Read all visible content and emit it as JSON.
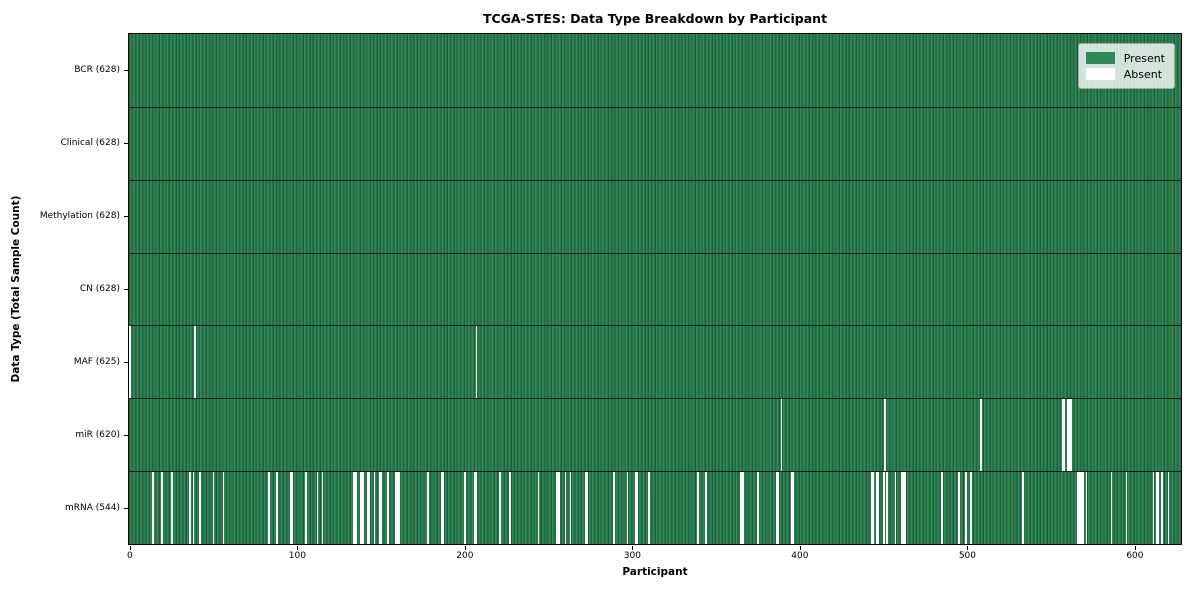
{
  "chart_data": {
    "type": "heatmap",
    "title": "TCGA-STES: Data Type Breakdown by Participant",
    "xlabel": "Participant",
    "ylabel": "Data Type (Total Sample Count)",
    "legend_labels": [
      "Present",
      "Absent"
    ],
    "legend_position": "upper right",
    "n_participants": 628,
    "xlim": [
      -0.5,
      627.5
    ],
    "x_ticks": [
      0,
      100,
      200,
      300,
      400,
      500,
      600
    ],
    "grid": false,
    "colors": {
      "present": "#2e8b57",
      "present_edge": "#1d5c39",
      "absent": "#ffffff",
      "row_separator": "#0e1a12",
      "plot_border": "#000000"
    },
    "rows": [
      {
        "label": "BCR (628)",
        "data_type": "BCR",
        "total_samples": 628,
        "absent_participants": []
      },
      {
        "label": "Clinical (628)",
        "data_type": "Clinical",
        "total_samples": 628,
        "absent_participants": []
      },
      {
        "label": "Methylation (628)",
        "data_type": "Methylation",
        "total_samples": 628,
        "absent_participants": []
      },
      {
        "label": "CN (628)",
        "data_type": "CN",
        "total_samples": 628,
        "absent_participants": []
      },
      {
        "label": "MAF (625)",
        "data_type": "MAF",
        "total_samples": 625,
        "absent_participants": [
          0,
          39,
          207
        ]
      },
      {
        "label": "miR (620)",
        "data_type": "miR",
        "total_samples": 620,
        "absent_participants": [
          389,
          451,
          508,
          557,
          558,
          560,
          561,
          562
        ]
      },
      {
        "label": "mRNA (544)",
        "data_type": "mRNA",
        "total_samples": 544,
        "absent_participants": [
          14,
          19,
          25,
          36,
          38,
          42,
          50,
          56,
          83,
          88,
          96,
          97,
          105,
          112,
          115,
          134,
          135,
          138,
          139,
          142,
          143,
          146,
          149,
          150,
          154,
          159,
          160,
          161,
          178,
          186,
          187,
          200,
          206,
          207,
          221,
          227,
          244,
          255,
          256,
          260,
          263,
          272,
          273,
          289,
          297,
          302,
          303,
          310,
          339,
          344,
          365,
          366,
          375,
          386,
          387,
          395,
          396,
          443,
          444,
          446,
          447,
          450,
          452,
          457,
          461,
          462,
          463,
          485,
          495,
          499,
          502,
          533,
          566,
          567,
          568,
          569,
          571,
          586,
          595,
          611,
          613,
          614,
          616,
          620
        ]
      }
    ]
  }
}
